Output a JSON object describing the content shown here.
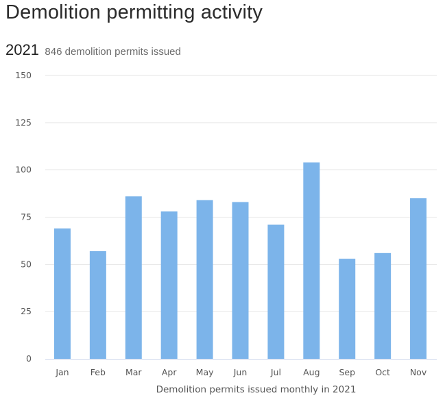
{
  "header": {
    "title": "Demolition permitting activity",
    "year": "2021",
    "summary": "846 demolition permits issued"
  },
  "colors": {
    "bar": "#7cb4ea",
    "grid": "#e6e6e6",
    "axis": "#ccd6eb"
  },
  "chart_data": {
    "type": "bar",
    "title": "",
    "xlabel": "Demolition permits issued monthly in 2021",
    "ylabel": "",
    "categories": [
      "Jan",
      "Feb",
      "Mar",
      "Apr",
      "May",
      "Jun",
      "Jul",
      "Aug",
      "Sep",
      "Oct",
      "Nov"
    ],
    "values": [
      69,
      57,
      86,
      78,
      84,
      83,
      71,
      104,
      53,
      56,
      85
    ],
    "ylim": [
      0,
      150
    ],
    "yticks": [
      0,
      25,
      50,
      75,
      100,
      125,
      150
    ],
    "grid": true,
    "legend": "none"
  }
}
